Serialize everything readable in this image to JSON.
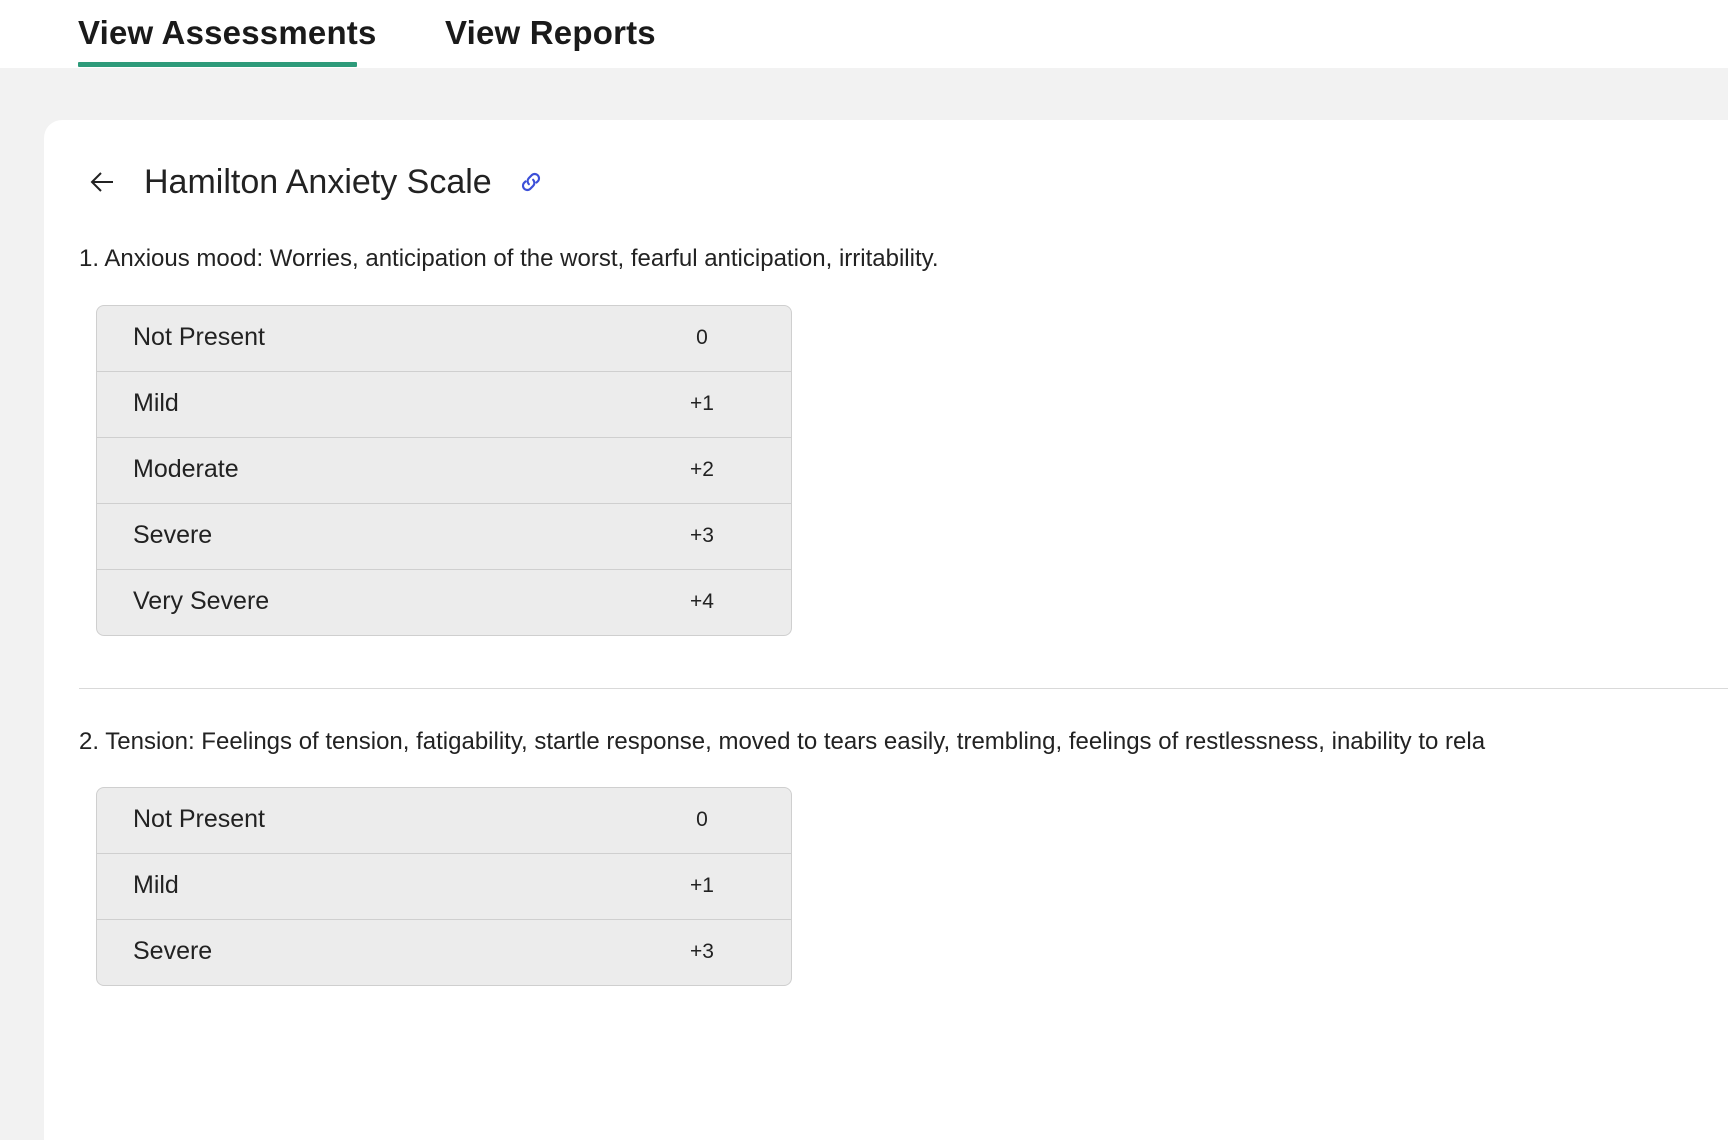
{
  "tabs": [
    {
      "label": "View Assessments",
      "active": true
    },
    {
      "label": "View Reports",
      "active": false
    }
  ],
  "accent_color": "#2e9b7a",
  "link_icon_color": "#3b4fd8",
  "header": {
    "back_icon": "arrow-left-icon",
    "title": "Hamilton Anxiety Scale",
    "link_icon": "link-icon"
  },
  "questions": [
    {
      "text": "1. Anxious mood: Worries, anticipation of the worst, fearful anticipation, irritability.",
      "options": [
        {
          "label": "Not Present",
          "score": "0"
        },
        {
          "label": "Mild",
          "score": "+1"
        },
        {
          "label": "Moderate",
          "score": "+2"
        },
        {
          "label": "Severe",
          "score": "+3"
        },
        {
          "label": "Very Severe",
          "score": "+4"
        }
      ]
    },
    {
      "text": "2. Tension: Feelings of tension, fatigability, startle response, moved to tears easily, trembling, feelings of restlessness, inability to rela",
      "options": [
        {
          "label": "Not Present",
          "score": "0"
        },
        {
          "label": "Mild",
          "score": "+1"
        },
        {
          "label": "Severe",
          "score": "+3"
        }
      ]
    }
  ]
}
